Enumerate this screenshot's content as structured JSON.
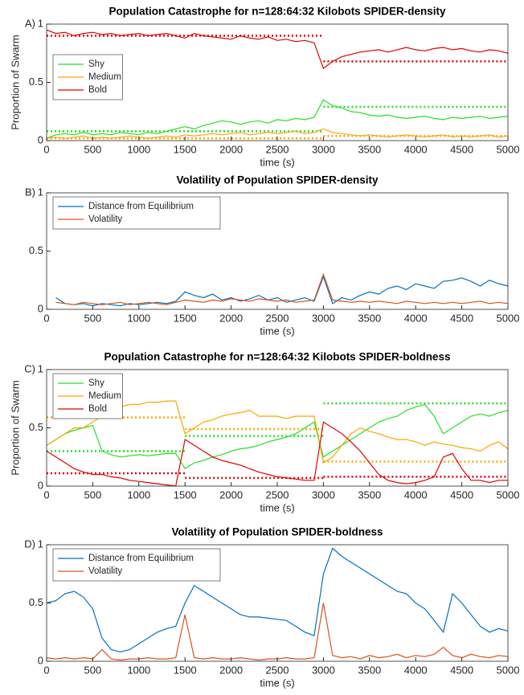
{
  "chart_data": [
    {
      "type": "line",
      "panel_label": "A)",
      "title": "Population Catastrophe for n=128:64:32 Kilobots SPIDER-density",
      "xlabel": "time (s)",
      "ylabel": "Proportion of Swarm",
      "legend": "upper left",
      "x": [
        0,
        100,
        200,
        300,
        400,
        500,
        600,
        700,
        800,
        900,
        1000,
        1100,
        1200,
        1300,
        1400,
        1500,
        1600,
        1700,
        1800,
        1900,
        2000,
        2100,
        2200,
        2300,
        2400,
        2500,
        2600,
        2700,
        2800,
        2900,
        3000,
        3100,
        3200,
        3300,
        3400,
        3500,
        3600,
        3700,
        3800,
        3900,
        4000,
        4100,
        4200,
        4300,
        4400,
        4500,
        4600,
        4700,
        4800,
        4900,
        5000
      ],
      "xlim": [
        0,
        5000
      ],
      "xticks": [
        0,
        500,
        1000,
        1500,
        2000,
        2500,
        3000,
        3500,
        4000,
        4500,
        5000
      ],
      "ylim": [
        0,
        1
      ],
      "yticks": [
        0,
        0.5,
        1
      ],
      "series": [
        {
          "name": "Shy",
          "color": "#22e022",
          "values": [
            0.02,
            0.05,
            0.06,
            0.05,
            0.07,
            0.05,
            0.06,
            0.05,
            0.07,
            0.06,
            0.05,
            0.07,
            0.06,
            0.08,
            0.1,
            0.12,
            0.1,
            0.13,
            0.15,
            0.17,
            0.16,
            0.14,
            0.16,
            0.17,
            0.15,
            0.18,
            0.17,
            0.19,
            0.18,
            0.2,
            0.35,
            0.3,
            0.28,
            0.25,
            0.24,
            0.22,
            0.21,
            0.22,
            0.2,
            0.19,
            0.2,
            0.21,
            0.19,
            0.18,
            0.2,
            0.19,
            0.2,
            0.21,
            0.19,
            0.2,
            0.21
          ]
        },
        {
          "name": "Medium",
          "color": "#ffa500",
          "values": [
            0.02,
            0.03,
            0.02,
            0.03,
            0.04,
            0.02,
            0.03,
            0.02,
            0.03,
            0.04,
            0.03,
            0.02,
            0.03,
            0.04,
            0.03,
            0.05,
            0.04,
            0.05,
            0.06,
            0.05,
            0.06,
            0.07,
            0.05,
            0.06,
            0.07,
            0.06,
            0.07,
            0.08,
            0.06,
            0.07,
            0.1,
            0.07,
            0.06,
            0.05,
            0.04,
            0.05,
            0.04,
            0.03,
            0.04,
            0.05,
            0.04,
            0.03,
            0.04,
            0.05,
            0.03,
            0.04,
            0.03,
            0.04,
            0.05,
            0.03,
            0.04
          ]
        },
        {
          "name": "Bold",
          "color": "#e00000",
          "values": [
            0.95,
            0.92,
            0.93,
            0.9,
            0.92,
            0.93,
            0.91,
            0.92,
            0.9,
            0.91,
            0.92,
            0.9,
            0.91,
            0.92,
            0.9,
            0.88,
            0.92,
            0.9,
            0.89,
            0.88,
            0.87,
            0.9,
            0.88,
            0.87,
            0.89,
            0.86,
            0.87,
            0.85,
            0.86,
            0.84,
            0.62,
            0.68,
            0.72,
            0.74,
            0.76,
            0.77,
            0.78,
            0.76,
            0.78,
            0.8,
            0.78,
            0.77,
            0.79,
            0.8,
            0.78,
            0.79,
            0.77,
            0.76,
            0.78,
            0.77,
            0.75
          ]
        }
      ],
      "equilibria": [
        {
          "color": "#22e022",
          "x": [
            0,
            3000
          ],
          "value": 0.08
        },
        {
          "color": "#22e022",
          "x": [
            3000,
            5000
          ],
          "value": 0.29
        },
        {
          "color": "#ffa500",
          "x": [
            0,
            3000
          ],
          "value": 0.02
        },
        {
          "color": "#ffa500",
          "x": [
            3000,
            5000
          ],
          "value": 0.04
        },
        {
          "color": "#e00000",
          "x": [
            0,
            3000
          ],
          "value": 0.9
        },
        {
          "color": "#e00000",
          "x": [
            3000,
            5000
          ],
          "value": 0.68
        }
      ]
    },
    {
      "type": "line",
      "panel_label": "B)",
      "title": "Volatility of Population SPIDER-density",
      "xlabel": "time (s)",
      "legend": "upper left",
      "x": [
        0,
        100,
        200,
        300,
        400,
        500,
        600,
        700,
        800,
        900,
        1000,
        1100,
        1200,
        1300,
        1400,
        1500,
        1600,
        1700,
        1800,
        1900,
        2000,
        2100,
        2200,
        2300,
        2400,
        2500,
        2600,
        2700,
        2800,
        2900,
        3000,
        3100,
        3200,
        3300,
        3400,
        3500,
        3600,
        3700,
        3800,
        3900,
        4000,
        4100,
        4200,
        4300,
        4400,
        4500,
        4600,
        4700,
        4800,
        4900,
        5000
      ],
      "xlim": [
        0,
        5000
      ],
      "xticks": [
        0,
        500,
        1000,
        1500,
        2000,
        2500,
        3000,
        3500,
        4000,
        4500,
        5000
      ],
      "ylim": [
        0,
        1
      ],
      "yticks": [
        0,
        0.5,
        1
      ],
      "series": [
        {
          "name": "Distance from Equilibrium",
          "color": "#0072bd",
          "values": [
            null,
            0.1,
            0.05,
            0.04,
            0.05,
            0.03,
            0.05,
            0.04,
            0.03,
            0.05,
            0.04,
            0.05,
            0.06,
            0.05,
            0.07,
            0.15,
            0.12,
            0.1,
            0.13,
            0.08,
            0.1,
            0.07,
            0.09,
            0.12,
            0.08,
            0.1,
            0.06,
            0.08,
            0.1,
            0.07,
            0.28,
            0.05,
            0.1,
            0.08,
            0.12,
            0.15,
            0.13,
            0.18,
            0.2,
            0.17,
            0.22,
            0.2,
            0.18,
            0.24,
            0.25,
            0.27,
            0.24,
            0.2,
            0.25,
            0.22,
            0.2
          ]
        },
        {
          "name": "Volatility",
          "color": "#d95319",
          "values": [
            null,
            0.06,
            0.05,
            0.04,
            0.06,
            0.05,
            0.04,
            0.05,
            0.06,
            0.04,
            0.05,
            0.06,
            0.05,
            0.04,
            0.06,
            0.08,
            0.07,
            0.06,
            0.08,
            0.07,
            0.09,
            0.08,
            0.07,
            0.09,
            0.08,
            0.07,
            0.08,
            0.06,
            0.07,
            0.08,
            0.3,
            0.08,
            0.07,
            0.06,
            0.07,
            0.06,
            0.07,
            0.06,
            0.05,
            0.07,
            0.06,
            0.05,
            0.06,
            0.05,
            0.06,
            0.05,
            0.06,
            0.07,
            0.05,
            0.06,
            0.05
          ]
        }
      ]
    },
    {
      "type": "line",
      "panel_label": "C)",
      "title": "Population Catastrophe for n=128:64:32 Kilobots SPIDER-boldness",
      "xlabel": "time (s)",
      "ylabel": "Proportion of Swarm",
      "legend": "upper left",
      "x": [
        0,
        100,
        200,
        300,
        400,
        500,
        600,
        700,
        800,
        900,
        1000,
        1100,
        1200,
        1300,
        1400,
        1500,
        1600,
        1700,
        1800,
        1900,
        2000,
        2100,
        2200,
        2300,
        2400,
        2500,
        2600,
        2700,
        2800,
        2900,
        3000,
        3100,
        3200,
        3300,
        3400,
        3500,
        3600,
        3700,
        3800,
        3900,
        4000,
        4100,
        4200,
        4300,
        4400,
        4500,
        4600,
        4700,
        4800,
        4900,
        5000
      ],
      "xlim": [
        0,
        5000
      ],
      "xticks": [
        0,
        500,
        1000,
        1500,
        2000,
        2500,
        3000,
        3500,
        4000,
        4500,
        5000
      ],
      "ylim": [
        0,
        1
      ],
      "yticks": [
        0,
        0.5,
        1
      ],
      "series": [
        {
          "name": "Shy",
          "color": "#22e022",
          "values": [
            0.35,
            0.4,
            0.45,
            0.48,
            0.5,
            0.52,
            0.3,
            0.27,
            0.25,
            0.26,
            0.27,
            0.26,
            0.27,
            0.28,
            0.28,
            0.15,
            0.2,
            0.22,
            0.25,
            0.27,
            0.3,
            0.32,
            0.33,
            0.35,
            0.38,
            0.4,
            0.42,
            0.45,
            0.5,
            0.55,
            0.25,
            0.3,
            0.35,
            0.4,
            0.45,
            0.5,
            0.55,
            0.58,
            0.6,
            0.65,
            0.68,
            0.7,
            0.6,
            0.45,
            0.5,
            0.55,
            0.6,
            0.62,
            0.6,
            0.63,
            0.65
          ]
        },
        {
          "name": "Medium",
          "color": "#ffa500",
          "values": [
            0.35,
            0.4,
            0.45,
            0.5,
            0.5,
            0.55,
            0.6,
            0.65,
            0.68,
            0.7,
            0.7,
            0.72,
            0.72,
            0.73,
            0.73,
            0.45,
            0.5,
            0.55,
            0.57,
            0.6,
            0.62,
            0.63,
            0.65,
            0.6,
            0.6,
            0.6,
            0.58,
            0.6,
            0.6,
            0.6,
            0.2,
            0.25,
            0.35,
            0.45,
            0.5,
            0.47,
            0.45,
            0.42,
            0.4,
            0.4,
            0.38,
            0.35,
            0.38,
            0.36,
            0.35,
            0.33,
            0.32,
            0.3,
            0.35,
            0.38,
            0.32
          ]
        },
        {
          "name": "Bold",
          "color": "#e00000",
          "values": [
            0.3,
            0.25,
            0.2,
            0.15,
            0.12,
            0.1,
            0.1,
            0.08,
            0.07,
            0.05,
            0.04,
            0.03,
            0.02,
            0.01,
            0,
            0.4,
            0.35,
            0.3,
            0.25,
            0.22,
            0.2,
            0.18,
            0.15,
            0.12,
            0.1,
            0.08,
            0.07,
            0.06,
            0.05,
            0.05,
            0.55,
            0.5,
            0.45,
            0.38,
            0.3,
            0.2,
            0.1,
            0.05,
            0.03,
            0.02,
            0.03,
            0.05,
            0.08,
            0.25,
            0.28,
            0.15,
            0.05,
            0.05,
            0.03,
            0.05,
            0.05
          ]
        }
      ],
      "equilibria": [
        {
          "color": "#22e022",
          "x": [
            0,
            1500
          ],
          "value": 0.3
        },
        {
          "color": "#22e022",
          "x": [
            1500,
            3000
          ],
          "value": 0.43
        },
        {
          "color": "#22e022",
          "x": [
            3000,
            5000
          ],
          "value": 0.71
        },
        {
          "color": "#ffa500",
          "x": [
            0,
            1500
          ],
          "value": 0.59
        },
        {
          "color": "#ffa500",
          "x": [
            1500,
            3000
          ],
          "value": 0.49
        },
        {
          "color": "#ffa500",
          "x": [
            3000,
            5000
          ],
          "value": 0.21
        },
        {
          "color": "#e00000",
          "x": [
            0,
            1500
          ],
          "value": 0.11
        },
        {
          "color": "#e00000",
          "x": [
            1500,
            3000
          ],
          "value": 0.07
        },
        {
          "color": "#e00000",
          "x": [
            3000,
            5000
          ],
          "value": 0.08
        }
      ]
    },
    {
      "type": "line",
      "panel_label": "D)",
      "title": "Volatility of Population SPIDER-boldness",
      "xlabel": "time (s)",
      "legend": "upper left",
      "x": [
        0,
        100,
        200,
        300,
        400,
        500,
        600,
        700,
        800,
        900,
        1000,
        1100,
        1200,
        1300,
        1400,
        1500,
        1600,
        1700,
        1800,
        1900,
        2000,
        2100,
        2200,
        2300,
        2400,
        2500,
        2600,
        2700,
        2800,
        2900,
        3000,
        3100,
        3200,
        3300,
        3400,
        3500,
        3600,
        3700,
        3800,
        3900,
        4000,
        4100,
        4200,
        4300,
        4400,
        4500,
        4600,
        4700,
        4800,
        4900,
        5000
      ],
      "xlim": [
        0,
        5000
      ],
      "xticks": [
        0,
        500,
        1000,
        1500,
        2000,
        2500,
        3000,
        3500,
        4000,
        4500,
        5000
      ],
      "ylim": [
        0,
        1
      ],
      "yticks": [
        0,
        0.5,
        1
      ],
      "series": [
        {
          "name": "Distance from Equilibrium",
          "color": "#0072bd",
          "values": [
            0.5,
            0.52,
            0.58,
            0.6,
            0.55,
            0.45,
            0.2,
            0.1,
            0.08,
            0.1,
            0.15,
            0.2,
            0.25,
            0.28,
            0.3,
            0.5,
            0.65,
            0.6,
            0.55,
            0.5,
            0.45,
            0.4,
            0.38,
            0.38,
            0.37,
            0.36,
            0.35,
            0.3,
            0.25,
            0.22,
            0.75,
            0.97,
            0.9,
            0.85,
            0.8,
            0.75,
            0.7,
            0.65,
            0.6,
            0.58,
            0.5,
            0.45,
            0.35,
            0.25,
            0.58,
            0.5,
            0.4,
            0.3,
            0.25,
            0.28,
            0.26
          ]
        },
        {
          "name": "Volatility",
          "color": "#d95319",
          "values": [
            0.03,
            0.02,
            0.03,
            0.02,
            0.03,
            0.02,
            0.1,
            0.02,
            0.01,
            0.02,
            0.02,
            0.03,
            0.02,
            0.02,
            0.03,
            0.4,
            0.03,
            0.02,
            0.03,
            0.02,
            0.02,
            0.03,
            0.02,
            0.01,
            0.02,
            0.02,
            0.03,
            0.02,
            0.02,
            0.03,
            0.5,
            0.05,
            0.03,
            0.04,
            0.02,
            0.05,
            0.03,
            0.04,
            0.06,
            0.03,
            0.05,
            0.04,
            0.06,
            0.12,
            0.05,
            0.03,
            0.06,
            0.04,
            0.03,
            0.05,
            0.04
          ]
        }
      ]
    }
  ]
}
